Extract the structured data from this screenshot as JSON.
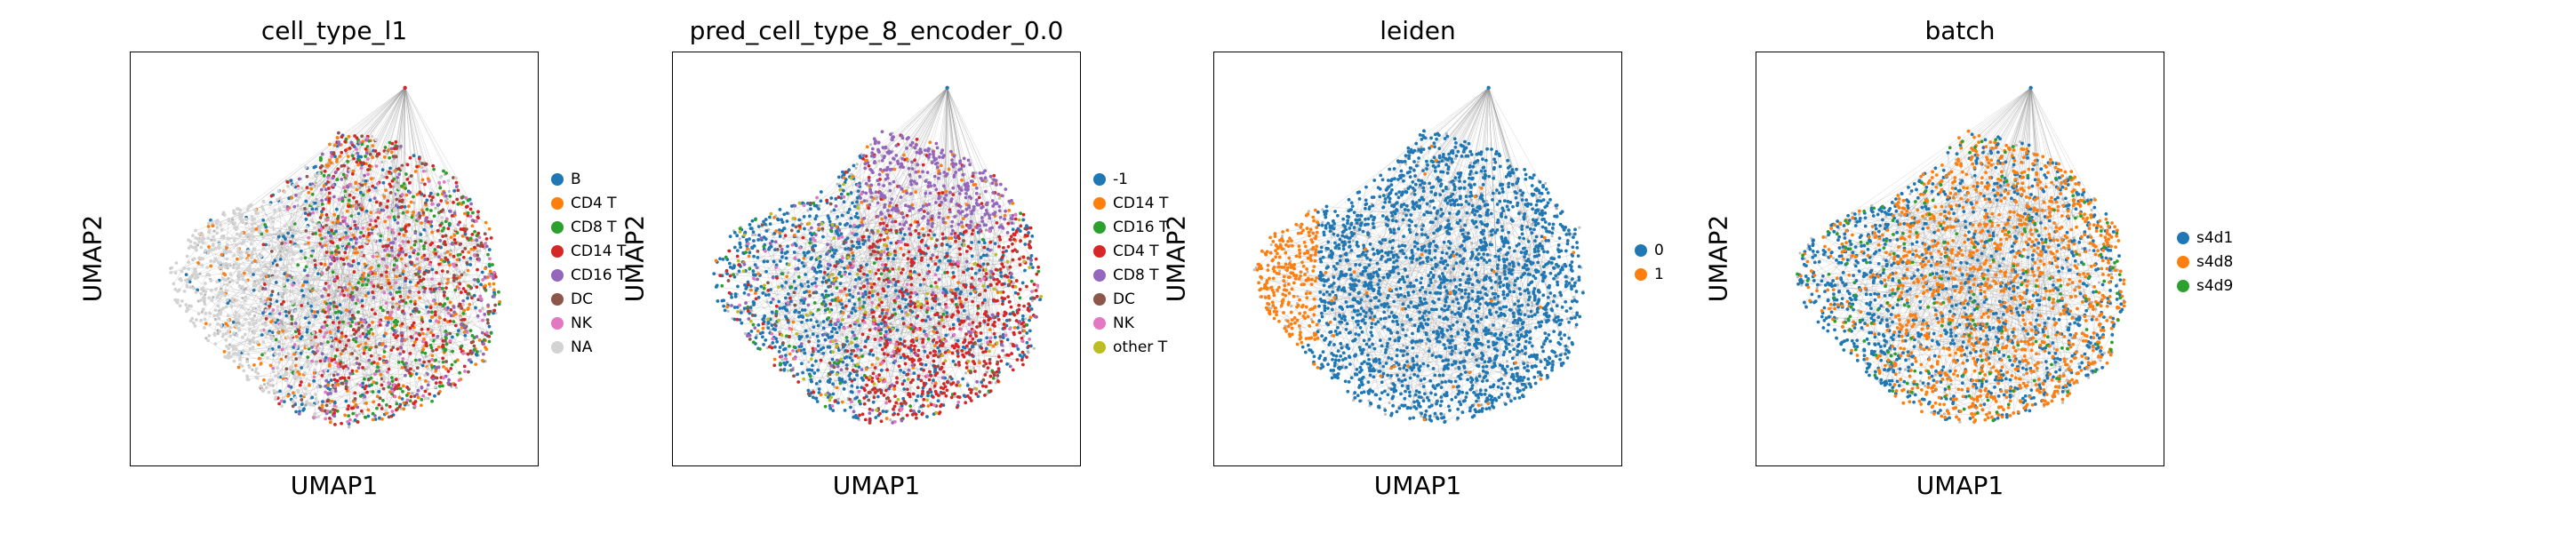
{
  "chart_data": [
    {
      "type": "scatter",
      "title": "cell_type_l1",
      "xlabel": "UMAP1",
      "ylabel": "UMAP2",
      "grid": false,
      "legend_placement": "right",
      "categories": [
        "B",
        "CD4 T",
        "CD8 T",
        "CD14 T",
        "CD16 T",
        "DC",
        "NK",
        "NA"
      ],
      "colors": [
        "#1f77b4",
        "#ff7f0e",
        "#2ca02c",
        "#d62728",
        "#9467bd",
        "#8c564b",
        "#e377c2",
        "#d3d3d3"
      ],
      "icon": "connectivity-edges-gray"
    },
    {
      "type": "scatter",
      "title": "pred_cell_type_8_encoder_0.0",
      "xlabel": "UMAP1",
      "ylabel": "UMAP2",
      "grid": false,
      "legend_placement": "right",
      "categories": [
        "-1",
        "CD14 T",
        "CD16 T",
        "CD4 T",
        "CD8 T",
        "DC",
        "NK",
        "other T"
      ],
      "colors": [
        "#1f77b4",
        "#ff7f0e",
        "#2ca02c",
        "#d62728",
        "#9467bd",
        "#8c564b",
        "#e377c2",
        "#bcbd22"
      ],
      "icon": "connectivity-edges-gray"
    },
    {
      "type": "scatter",
      "title": "leiden",
      "xlabel": "UMAP1",
      "ylabel": "UMAP2",
      "grid": false,
      "legend_placement": "right",
      "categories": [
        "0",
        "1"
      ],
      "colors": [
        "#1f77b4",
        "#ff7f0e"
      ],
      "icon": "connectivity-edges-gray"
    },
    {
      "type": "scatter",
      "title": "batch",
      "xlabel": "UMAP1",
      "ylabel": "UMAP2",
      "grid": false,
      "legend_placement": "right",
      "categories": [
        "s4d1",
        "s4d8",
        "s4d9"
      ],
      "colors": [
        "#1f77b4",
        "#ff7f0e",
        "#2ca02c"
      ],
      "icon": "connectivity-edges-gray"
    }
  ]
}
